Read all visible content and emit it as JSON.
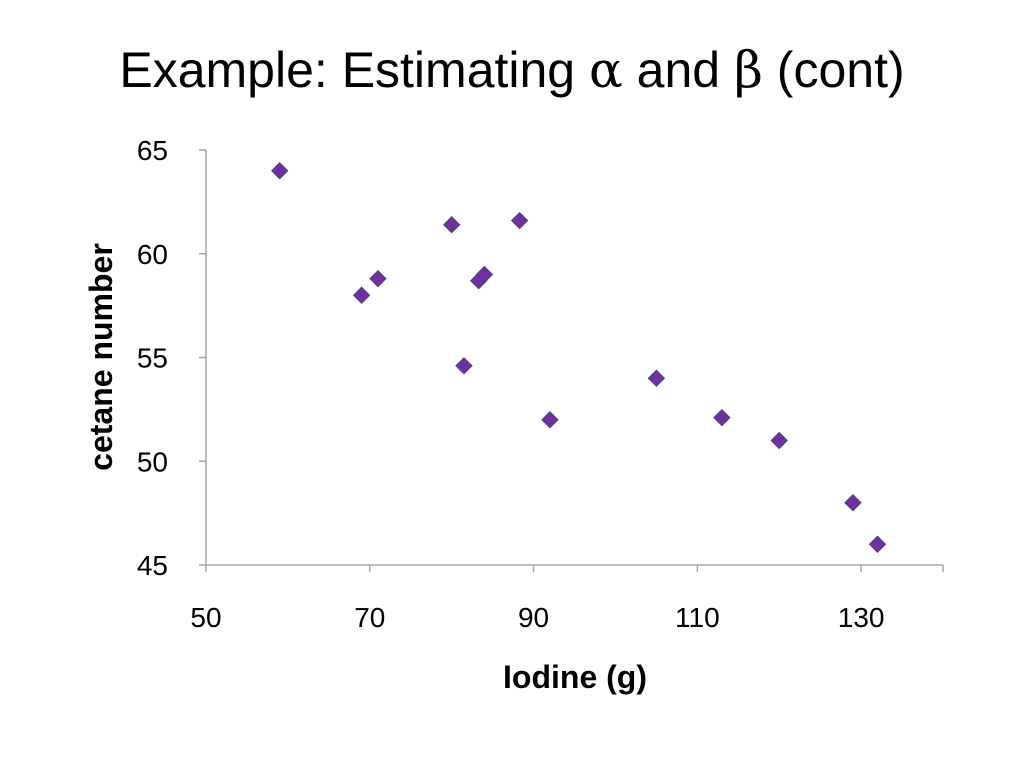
{
  "slide": {
    "title_prefix": "Example: Estimating ",
    "alpha_symbol": "α",
    "title_and": " and ",
    "beta_symbol": "β",
    "title_suffix": " (cont)"
  },
  "chart_data": {
    "type": "scatter",
    "xlabel": "Iodine (g)",
    "ylabel": "cetane number",
    "xlim": [
      50,
      140
    ],
    "ylim": [
      45,
      65
    ],
    "x_ticks": [
      50,
      70,
      90,
      110,
      130
    ],
    "y_ticks": [
      45,
      50,
      55,
      60,
      65
    ],
    "grid": false,
    "legend": "none",
    "marker": "diamond",
    "marker_color": "#7030A0",
    "marker_edge_color": "#4F3D8F",
    "axis_color": "#A6A6A6",
    "points": [
      {
        "x": 59,
        "y": 64
      },
      {
        "x": 69,
        "y": 58
      },
      {
        "x": 71,
        "y": 58.8
      },
      {
        "x": 80,
        "y": 61.4
      },
      {
        "x": 81.5,
        "y": 54.6
      },
      {
        "x": 83.3,
        "y": 58.7
      },
      {
        "x": 84,
        "y": 59
      },
      {
        "x": 88.3,
        "y": 61.6
      },
      {
        "x": 92,
        "y": 52
      },
      {
        "x": 105,
        "y": 54
      },
      {
        "x": 113,
        "y": 52.1
      },
      {
        "x": 120,
        "y": 51
      },
      {
        "x": 129,
        "y": 48
      },
      {
        "x": 132,
        "y": 46
      }
    ]
  }
}
